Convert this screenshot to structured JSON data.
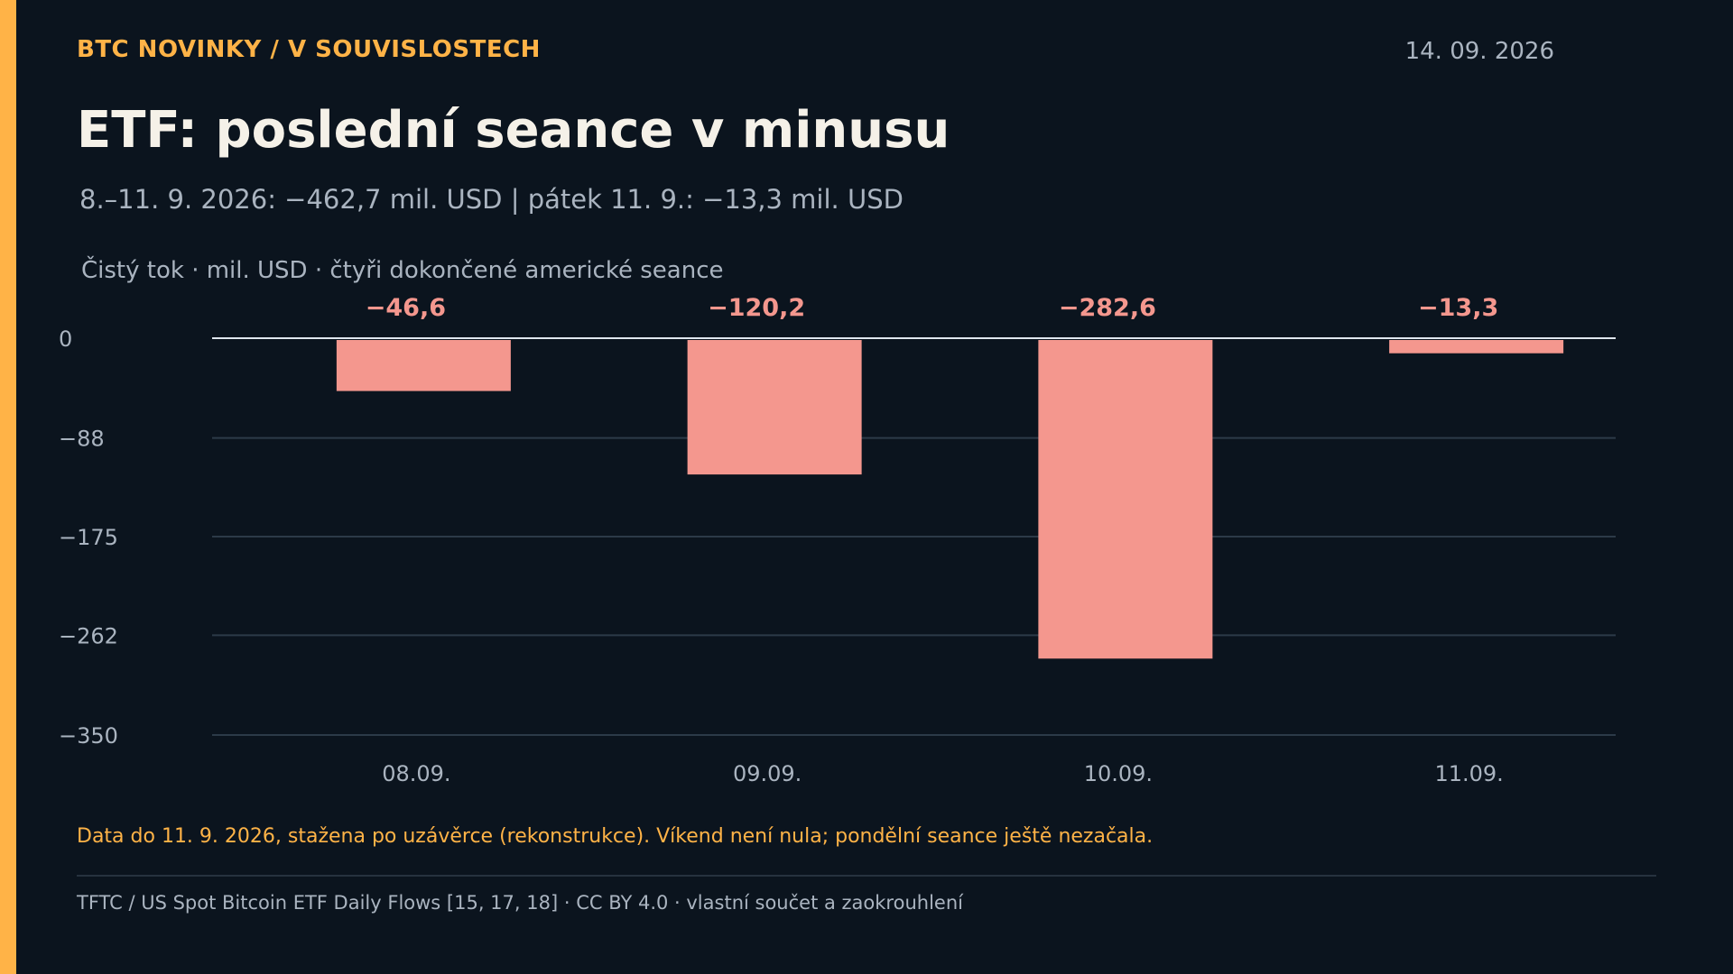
{
  "header": {
    "kicker": "BTC NOVINKY / V SOUVISLOSTECH",
    "date": "14. 09. 2026",
    "title": "ETF: poslední seance v minusu",
    "subtitle": "8.–11. 9. 2026: −462,7 mil. USD | pátek 11. 9.: −13,3 mil. USD"
  },
  "chart_data": {
    "type": "bar",
    "caption": "Čistý tok · mil. USD · čtyři dokončené americké seance",
    "categories": [
      "08.09.",
      "09.09.",
      "10.09.",
      "11.09."
    ],
    "values": [
      -46.6,
      -120.2,
      -282.6,
      -13.3
    ],
    "value_labels": [
      "−46,6",
      "−120,2",
      "−282,6",
      "−13,3"
    ],
    "yticks": [
      0,
      -88,
      -175,
      -262,
      -350
    ],
    "ytick_labels": [
      "0",
      "−88",
      "−175",
      "−262",
      "−350"
    ],
    "ylim": [
      -350,
      0
    ],
    "grid": true,
    "bar_color": "#f4978e",
    "label_color": "#f4978e"
  },
  "footer": {
    "note": "Data do 11. 9. 2026, stažena po uzávěrce (rekonstrukce). Víkend není nula; pondělní seance ještě nezačala.",
    "source": "TFTC / US Spot Bitcoin ETF Daily Flows [15, 17, 18] · CC BY 4.0 · vlastní součet a zaokrouhlení"
  }
}
